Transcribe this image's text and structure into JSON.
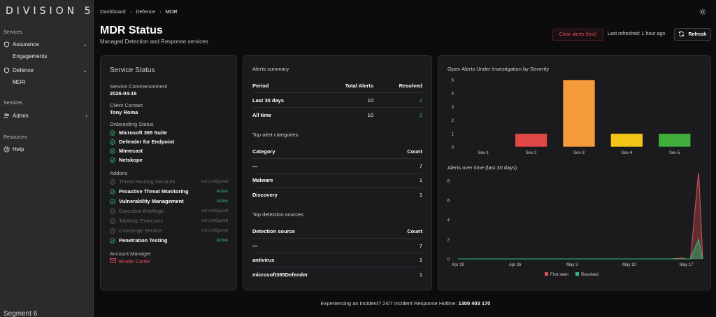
{
  "sidebar": {
    "brand": "DIVISION 5",
    "sections": [
      {
        "label": "Services"
      },
      {
        "label": "Services"
      },
      {
        "label": "Resources"
      }
    ],
    "items": {
      "assurance": "Assurance",
      "engagements": "Engagements",
      "defence": "Defence",
      "mdr": "MDR",
      "admin": "Admin",
      "help": "Help"
    },
    "footer": "Segment 6"
  },
  "header": {
    "breadcrumbs": [
      "Dashboard",
      "Defence",
      "MDR"
    ],
    "title": "MDR Status",
    "subtitle": "Managed Detection and Response services",
    "clear_alerts": "Clear alerts (test)",
    "last_refreshed": "Last refreshed: 1 hour ago",
    "refresh": "Refresh"
  },
  "service_status": {
    "title": "Service Status",
    "commencement_label": "Service Commencement",
    "commencement_value": "2026-04-16",
    "contact_label": "Client Contact",
    "contact_value": "Tony Roma",
    "onboarding_label": "Onboarding Status",
    "onboarding": [
      "Microsoft 365 Suite",
      "Defender for Endpoint",
      "Mimecast",
      "Netskope"
    ],
    "addons_label": "Addons",
    "addons": [
      {
        "name": "Threat Hunting Services",
        "status": "not configured",
        "active": false
      },
      {
        "name": "Proactive Threat Monitoring",
        "status": "Active",
        "active": true
      },
      {
        "name": "Vulnerability Management",
        "status": "Active",
        "active": true
      },
      {
        "name": "Executive Briefings",
        "status": "not configured",
        "active": false
      },
      {
        "name": "Tabletop Exercises",
        "status": "not configured",
        "active": false
      },
      {
        "name": "Concierge Service",
        "status": "not configured",
        "active": false
      },
      {
        "name": "Penetration Testing",
        "status": "Active",
        "active": true
      }
    ],
    "manager_label": "Account Manager",
    "manager_value": "Brodie Carter"
  },
  "alerts": {
    "summary_title": "Alerts summary",
    "summary_headers": [
      "Period",
      "Total Alerts",
      "Resolved"
    ],
    "summary_rows": [
      [
        "Last 30 days",
        "10",
        "2"
      ],
      [
        "All time",
        "10",
        "2"
      ]
    ],
    "categories_title": "Top alert categories",
    "categories_headers": [
      "Category",
      "Count"
    ],
    "categories_rows": [
      [
        "—",
        "7"
      ],
      [
        "Malware",
        "1"
      ],
      [
        "Discovery",
        "1"
      ]
    ],
    "sources_title": "Top detection sources",
    "sources_headers": [
      "Detection source",
      "Count"
    ],
    "sources_rows": [
      [
        "—",
        "7"
      ],
      [
        "antivirus",
        "1"
      ],
      [
        "microsoft365Defender",
        "1"
      ]
    ]
  },
  "chart_data": [
    {
      "type": "bar",
      "title": "Open Alerts Under Investigation by Severity",
      "categories": [
        "Sev-1",
        "Sev-2",
        "Sev-3",
        "Sev-4",
        "Sev-5"
      ],
      "values": [
        0,
        1,
        5,
        1,
        1
      ],
      "colors": [
        "#e04848",
        "#e04848",
        "#f59a3a",
        "#f2c418",
        "#3fae3a"
      ],
      "ylim": [
        0,
        5
      ],
      "yticks": [
        "0",
        "1",
        "2",
        "3",
        "4",
        "5"
      ],
      "grid": false
    },
    {
      "type": "area",
      "title": "Alerts over time (last 30 days)",
      "x_ticks": [
        "Apr 19",
        "Apr 26",
        "May 3",
        "May 10",
        "May 17"
      ],
      "yticks": [
        "0",
        "2",
        "4",
        "6",
        "8"
      ],
      "ylim": [
        0,
        8
      ],
      "series": [
        {
          "name": "First seen",
          "color": "#e0525c",
          "points": [
            [
              0,
              0
            ],
            [
              26,
              0
            ],
            [
              27.5,
              0.1
            ],
            [
              28,
              0
            ],
            [
              28.5,
              0
            ],
            [
              29.5,
              9
            ],
            [
              30,
              0
            ]
          ]
        },
        {
          "name": "Resolved",
          "color": "#2fbf7a",
          "points": [
            [
              0,
              0
            ],
            [
              28,
              0
            ],
            [
              28.5,
              0
            ],
            [
              29.5,
              2
            ],
            [
              30,
              0
            ]
          ]
        }
      ],
      "legend": "bottom"
    }
  ],
  "footer": {
    "text": "Experiencing an Incident? 24/7 Incident Response Hotline:",
    "phone": "1300 403 170"
  }
}
